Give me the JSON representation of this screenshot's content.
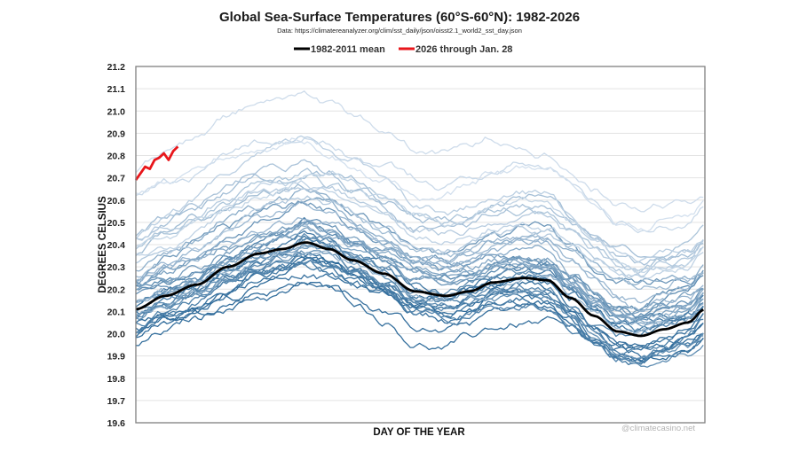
{
  "chart_data": {
    "type": "line",
    "title": "Global Sea-Surface Temperatures (60°S-60°N): 1982-2026",
    "subtitle": "Data: https://climatereanalyzer.org/clim/sst_daily/json/oisst2.1_world2_sst_day.json",
    "xlabel": "DAY OF THE YEAR",
    "ylabel": "DEGREES CELSIUS",
    "watermark": "@climatecasino.net",
    "xlim": [
      1,
      366
    ],
    "ylim": [
      19.6,
      21.2
    ],
    "yticks": [
      "19.6",
      "19.7",
      "19.8",
      "19.9",
      "20.0",
      "20.1",
      "20.2",
      "20.3",
      "20.4",
      "20.5",
      "20.6",
      "20.7",
      "20.8",
      "20.9",
      "21.0",
      "21.1",
      "21.2"
    ],
    "grid": true,
    "legend": {
      "placement": "top-center",
      "entries": [
        {
          "label": "1982-2011 mean",
          "color": "#000000"
        },
        {
          "label": "2026 through Jan. 28",
          "color": "#e8161b"
        }
      ]
    },
    "colors": {
      "mean": "#000000",
      "current": "#e8161b",
      "oldest_year": "#2f6b9a",
      "newest_year": "#d3e0ee"
    },
    "mean_series": {
      "name": "1982-2011 mean",
      "x": [
        1,
        20,
        40,
        60,
        80,
        95,
        110,
        125,
        140,
        160,
        180,
        200,
        215,
        230,
        250,
        265,
        280,
        295,
        310,
        325,
        340,
        355,
        366
      ],
      "y": [
        20.11,
        20.17,
        20.22,
        20.3,
        20.36,
        20.38,
        20.41,
        20.38,
        20.33,
        20.27,
        20.19,
        20.17,
        20.19,
        20.23,
        20.25,
        20.24,
        20.16,
        20.08,
        20.01,
        19.99,
        20.02,
        20.05,
        20.11
      ]
    },
    "current_series": {
      "name": "2026 through Jan. 28",
      "x": [
        1,
        4,
        7,
        10,
        13,
        16,
        19,
        22,
        25,
        28
      ],
      "y": [
        20.69,
        20.72,
        20.75,
        20.74,
        20.78,
        20.79,
        20.81,
        20.78,
        20.82,
        20.84
      ]
    },
    "year_series": {
      "years_from": 1982,
      "years_to": 2025,
      "note": "each year's daily curve follows the seasonal mean shape shifted by its annual offset (°C)",
      "offsets": [
        -0.12,
        -0.05,
        -0.14,
        -0.16,
        -0.08,
        0.02,
        -0.02,
        -0.1,
        0.0,
        -0.02,
        -0.1,
        -0.06,
        -0.04,
        0.02,
        -0.04,
        0.1,
        0.08,
        -0.04,
        -0.02,
        0.06,
        0.1,
        0.12,
        0.1,
        0.14,
        0.1,
        0.04,
        -0.02,
        0.14,
        0.18,
        0.04,
        0.12,
        0.14,
        0.24,
        0.34,
        0.32,
        0.26,
        0.22,
        0.32,
        0.32,
        0.26,
        0.28,
        0.5,
        0.62,
        0.52
      ]
    }
  }
}
